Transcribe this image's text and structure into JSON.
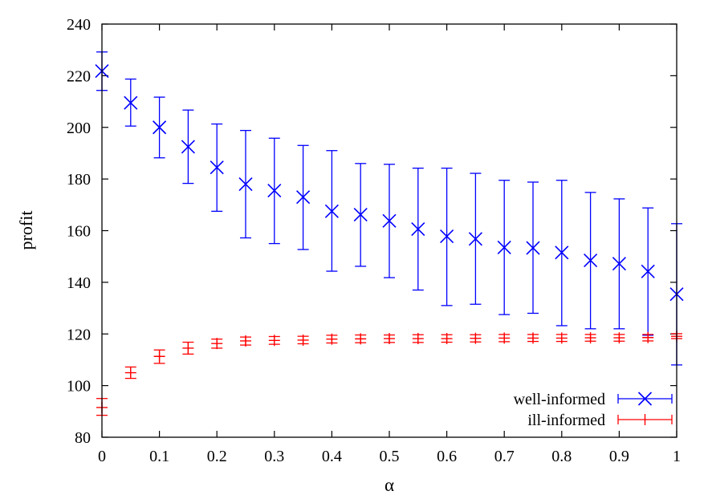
{
  "chart_data": {
    "type": "scatter",
    "title": "",
    "xlabel": "α",
    "ylabel": "profit",
    "xlim": [
      0,
      1
    ],
    "ylim": [
      80,
      240
    ],
    "x_ticks": [
      0,
      0.1,
      0.2,
      0.3,
      0.4,
      0.5,
      0.6,
      0.7,
      0.8,
      0.9,
      1
    ],
    "x_tick_labels": [
      "0",
      "0.1",
      "0.2",
      "0.3",
      "0.4",
      "0.5",
      "0.6",
      "0.7",
      "0.8",
      "0.9",
      "1"
    ],
    "y_ticks": [
      80,
      100,
      120,
      140,
      160,
      180,
      200,
      220,
      240
    ],
    "y_tick_labels": [
      "80",
      "100",
      "120",
      "140",
      "160",
      "180",
      "200",
      "220",
      "240"
    ],
    "grid": false,
    "legend_position": "bottom-right",
    "x": [
      0,
      0.05,
      0.1,
      0.15,
      0.2,
      0.25,
      0.3,
      0.35,
      0.4,
      0.45,
      0.5,
      0.55,
      0.6,
      0.65,
      0.7,
      0.75,
      0.8,
      0.85,
      0.9,
      0.95,
      1
    ],
    "series": [
      {
        "name": "well-informed",
        "color": "#0000ff",
        "marker": "x",
        "values": [
          221.8,
          209.5,
          200,
          192.5,
          184.5,
          178,
          175.5,
          173,
          167.5,
          166.2,
          163.8,
          160.6,
          157.8,
          156.8,
          153.5,
          153.3,
          151.5,
          148.5,
          147.2,
          144.2,
          135.4
        ],
        "err_low": [
          214.3,
          200.5,
          188.2,
          178.3,
          167.5,
          157.2,
          155,
          152.7,
          144.3,
          146.2,
          141.8,
          137,
          131,
          131.5,
          127.5,
          128,
          123.2,
          122,
          122,
          119.5,
          108
        ],
        "err_high": [
          229.2,
          218.7,
          211.7,
          206.7,
          201.3,
          198.8,
          195.8,
          193,
          191,
          186,
          185.7,
          184.2,
          184.2,
          182.2,
          179.5,
          178.8,
          179.5,
          174.8,
          172.3,
          168.8,
          162.7
        ]
      },
      {
        "name": "ill-informed",
        "color": "#ff0000",
        "marker": "+",
        "values": [
          91.5,
          105,
          111.3,
          114.5,
          116.3,
          117.3,
          117.5,
          117.6,
          118,
          118.1,
          118.2,
          118.2,
          118.2,
          118.3,
          118.4,
          118.4,
          118.4,
          118.5,
          118.5,
          118.6,
          119.1
        ],
        "err_low": [
          88.5,
          102.8,
          108.6,
          112.2,
          114.5,
          115.7,
          116,
          116.2,
          116.5,
          116.6,
          116.7,
          116.7,
          116.8,
          116.9,
          117,
          117.1,
          117.1,
          117.2,
          117.2,
          117.3,
          118.2
        ],
        "err_high": [
          95,
          107.2,
          113.8,
          116.8,
          118,
          118.8,
          119,
          119.1,
          119.5,
          119.6,
          119.6,
          119.7,
          119.7,
          119.7,
          119.8,
          119.8,
          119.8,
          119.8,
          119.8,
          119.8,
          120.1
        ]
      }
    ]
  }
}
